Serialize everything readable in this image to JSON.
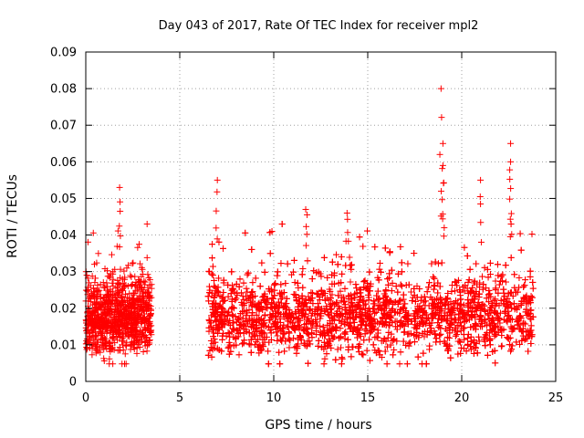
{
  "chart_data": {
    "type": "scatter",
    "title": "Day 043 of 2017, Rate Of TEC Index for receiver mpl2",
    "xlabel": "GPS time / hours",
    "ylabel": "ROTI / TECUs",
    "xlim": [
      0,
      25
    ],
    "ylim": [
      0,
      0.09
    ],
    "xticks": [
      "0",
      "5",
      "10",
      "15",
      "20",
      "25"
    ],
    "yticks": [
      "0",
      "0.01",
      "0.02",
      "0.03",
      "0.04",
      "0.05",
      "0.06",
      "0.07",
      "0.08",
      "0.09"
    ],
    "grid": true,
    "marker": "plus",
    "series_color": "#ff0000",
    "segments": [
      {
        "x_start": 0.0,
        "x_end": 3.5,
        "typical_range": [
          0.006,
          0.03
        ]
      },
      {
        "x_start": 6.5,
        "x_end": 23.8,
        "typical_range": [
          0.006,
          0.03
        ]
      }
    ],
    "peaks": [
      {
        "x": 1.8,
        "y": 0.053
      },
      {
        "x": 7.0,
        "y": 0.055
      },
      {
        "x": 11.7,
        "y": 0.047
      },
      {
        "x": 13.9,
        "y": 0.046
      },
      {
        "x": 18.9,
        "y": 0.08
      },
      {
        "x": 19.0,
        "y": 0.065
      },
      {
        "x": 19.0,
        "y": 0.059
      },
      {
        "x": 21.0,
        "y": 0.055
      },
      {
        "x": 22.6,
        "y": 0.065
      },
      {
        "x": 22.6,
        "y": 0.06
      }
    ]
  }
}
